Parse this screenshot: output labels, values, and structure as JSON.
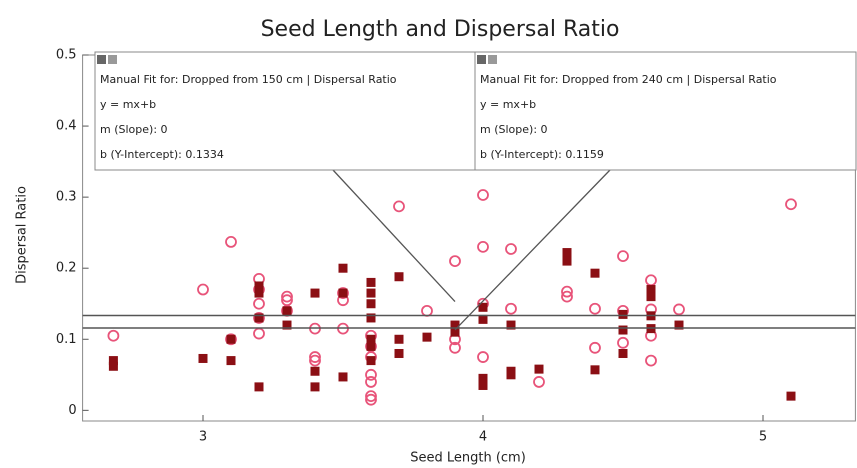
{
  "chart_data": {
    "type": "scatter",
    "title": "Seed Length and Dispersal Ratio",
    "x_label": "Seed Length (cm)",
    "y_label": "Dispersal Ratio",
    "xlim": [
      2.57,
      5.33
    ],
    "ylim": [
      -0.015,
      0.5
    ],
    "xticks": [
      3,
      4,
      5
    ],
    "yticks": [
      0,
      0.1,
      0.2,
      0.3,
      0.4,
      0.5
    ],
    "series": [
      {
        "color": "#e8547a",
        "marker": "circle",
        "x": [
          2.68,
          3.0,
          3.1,
          3.1,
          3.2,
          3.2,
          3.2,
          3.2,
          3.2,
          3.3,
          3.3,
          3.3,
          3.4,
          3.4,
          3.4,
          3.5,
          3.5,
          3.5,
          3.6,
          3.6,
          3.6,
          3.6,
          3.6,
          3.6,
          3.6,
          3.7,
          3.8,
          3.9,
          3.9,
          3.9,
          4.0,
          4.0,
          4.0,
          4.0,
          4.1,
          4.1,
          4.2,
          4.3,
          4.3,
          4.4,
          4.4,
          4.5,
          4.5,
          4.5,
          4.6,
          4.6,
          4.6,
          4.6,
          4.7,
          5.1
        ],
        "values": [
          0.105,
          0.17,
          0.237,
          0.1,
          0.185,
          0.17,
          0.15,
          0.13,
          0.108,
          0.16,
          0.155,
          0.14,
          0.115,
          0.075,
          0.07,
          0.165,
          0.155,
          0.115,
          0.105,
          0.09,
          0.075,
          0.05,
          0.04,
          0.02,
          0.015,
          0.287,
          0.14,
          0.21,
          0.1,
          0.088,
          0.303,
          0.23,
          0.15,
          0.075,
          0.227,
          0.143,
          0.04,
          0.167,
          0.16,
          0.143,
          0.088,
          0.217,
          0.14,
          0.095,
          0.183,
          0.142,
          0.105,
          0.07,
          0.142,
          0.29
        ]
      },
      {
        "color": "#8b0f14",
        "marker": "square",
        "x": [
          2.68,
          2.68,
          3.0,
          3.1,
          3.1,
          3.2,
          3.2,
          3.2,
          3.2,
          3.3,
          3.3,
          3.4,
          3.4,
          3.4,
          3.5,
          3.5,
          3.5,
          3.6,
          3.6,
          3.6,
          3.6,
          3.6,
          3.6,
          3.6,
          3.7,
          3.7,
          3.7,
          3.8,
          3.9,
          3.9,
          4.0,
          4.0,
          4.0,
          4.0,
          4.0,
          4.1,
          4.1,
          4.1,
          4.2,
          4.3,
          4.3,
          4.4,
          4.4,
          4.5,
          4.5,
          4.5,
          4.6,
          4.6,
          4.6,
          4.6,
          4.7,
          5.1
        ],
        "values": [
          0.07,
          0.062,
          0.073,
          0.1,
          0.07,
          0.175,
          0.165,
          0.13,
          0.033,
          0.14,
          0.12,
          0.165,
          0.055,
          0.033,
          0.2,
          0.165,
          0.047,
          0.18,
          0.165,
          0.15,
          0.13,
          0.1,
          0.09,
          0.07,
          0.188,
          0.1,
          0.08,
          0.103,
          0.12,
          0.11,
          0.145,
          0.128,
          0.045,
          0.04,
          0.035,
          0.12,
          0.055,
          0.05,
          0.058,
          0.222,
          0.21,
          0.193,
          0.057,
          0.135,
          0.113,
          0.08,
          0.17,
          0.16,
          0.133,
          0.115,
          0.12,
          0.02
        ]
      }
    ],
    "fits": [
      {
        "heading": "Manual Fit for: Dropped from 150 cm | Dispersal Ratio",
        "equation": "y = mx+b",
        "slope_prefix": "m (Slope): ",
        "slope": 0,
        "intercept_prefix": "b (Y-Intercept): ",
        "intercept": 0.1334
      },
      {
        "heading": "Manual Fit for: Dropped from 240 cm | Dispersal Ratio",
        "equation": "y = mx+b",
        "slope_prefix": "m (Slope): ",
        "slope": 0,
        "intercept_prefix": "b (Y-Intercept): ",
        "intercept": 0.1159
      }
    ]
  }
}
